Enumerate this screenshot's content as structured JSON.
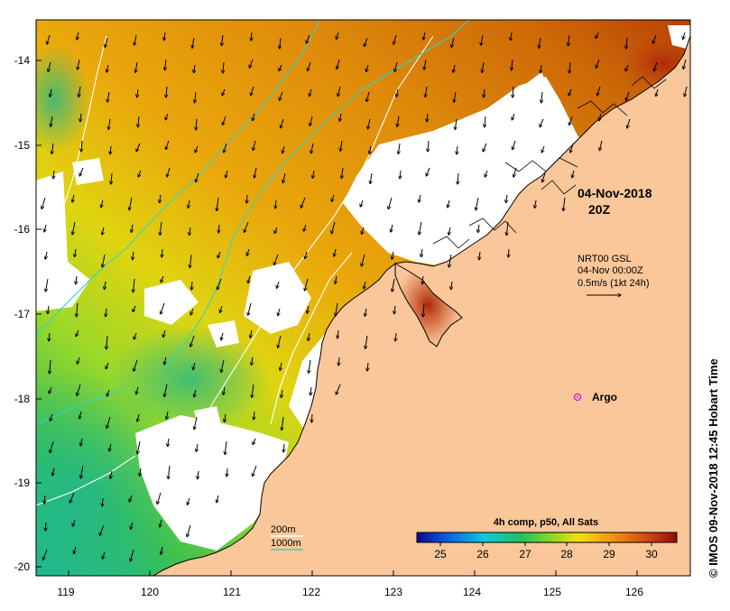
{
  "map": {
    "timestamp_line1": "04-Nov-2018",
    "timestamp_line2": "20Z",
    "current_label_line1": "NRT00 GSL",
    "current_label_line2": "04-Nov 00:00Z",
    "current_label_line3": "0.5m/s (1kt 24h)",
    "argo_label": "Argo",
    "isobath_200": "200m",
    "isobath_1000": "1000m",
    "colorbar_title": "4h comp, p50, All Sats",
    "colorbar_ticks": [
      "25",
      "26",
      "27",
      "28",
      "29",
      "30"
    ],
    "credit": "© IMOS 09-Nov-2018 12:45 Hobart Time",
    "lat_ticks": [
      "-14",
      "-15",
      "-16",
      "-17",
      "-18",
      "-19",
      "-20"
    ],
    "lon_ticks": [
      "119",
      "120",
      "121",
      "122",
      "123",
      "124",
      "125",
      "126"
    ],
    "colors": {
      "land": "#fac79a",
      "cloud": "#ffffff",
      "isobath_200": "#ffffff",
      "isobath_1000": "#2ed6c8",
      "argo": "#dd22dd"
    }
  }
}
